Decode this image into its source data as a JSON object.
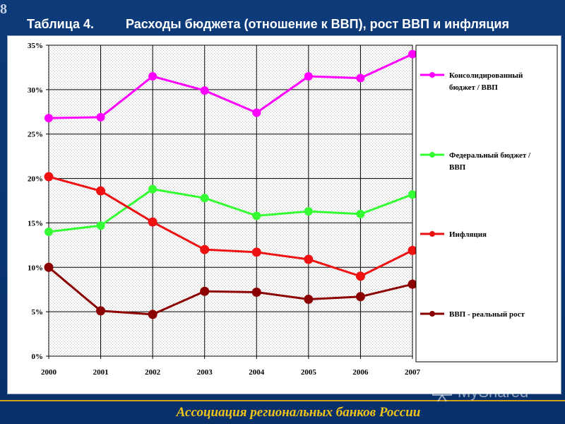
{
  "slide_number": "8",
  "header": {
    "table_label": "Таблица 4.",
    "title": "Расходы бюджета (отношение к ВВП), рост ВВП и инфляция"
  },
  "footer": {
    "organization": "Ассоциация региональных банков России"
  },
  "watermark": {
    "text": "MyShared"
  },
  "chart_data": {
    "type": "line",
    "x": [
      "2000",
      "2001",
      "2002",
      "2003",
      "2004",
      "2005",
      "2006",
      "2007"
    ],
    "yticks": [
      "0%",
      "5%",
      "10%",
      "15%",
      "20%",
      "25%",
      "30%",
      "35%"
    ],
    "ylim": [
      0,
      35
    ],
    "grid": true,
    "legend_position": "right",
    "series": [
      {
        "name": "Консолидированный бюджет / ВВП",
        "color": "#ff00ff",
        "values": [
          26.8,
          26.9,
          31.5,
          29.9,
          27.4,
          31.5,
          31.3,
          34.0
        ]
      },
      {
        "name": "Федеральный бюджет / ВВП",
        "color": "#33ff33",
        "values": [
          14.0,
          14.7,
          18.8,
          17.8,
          15.8,
          16.3,
          16.0,
          18.2
        ]
      },
      {
        "name": "Инфляция",
        "color": "#ee1111",
        "values": [
          20.2,
          18.6,
          15.1,
          12.0,
          11.7,
          10.9,
          9.0,
          11.9
        ]
      },
      {
        "name": "ВВП - реальный рост",
        "color": "#8b0000",
        "values": [
          10.0,
          5.1,
          4.7,
          7.3,
          7.2,
          6.4,
          6.7,
          8.1
        ]
      }
    ]
  }
}
